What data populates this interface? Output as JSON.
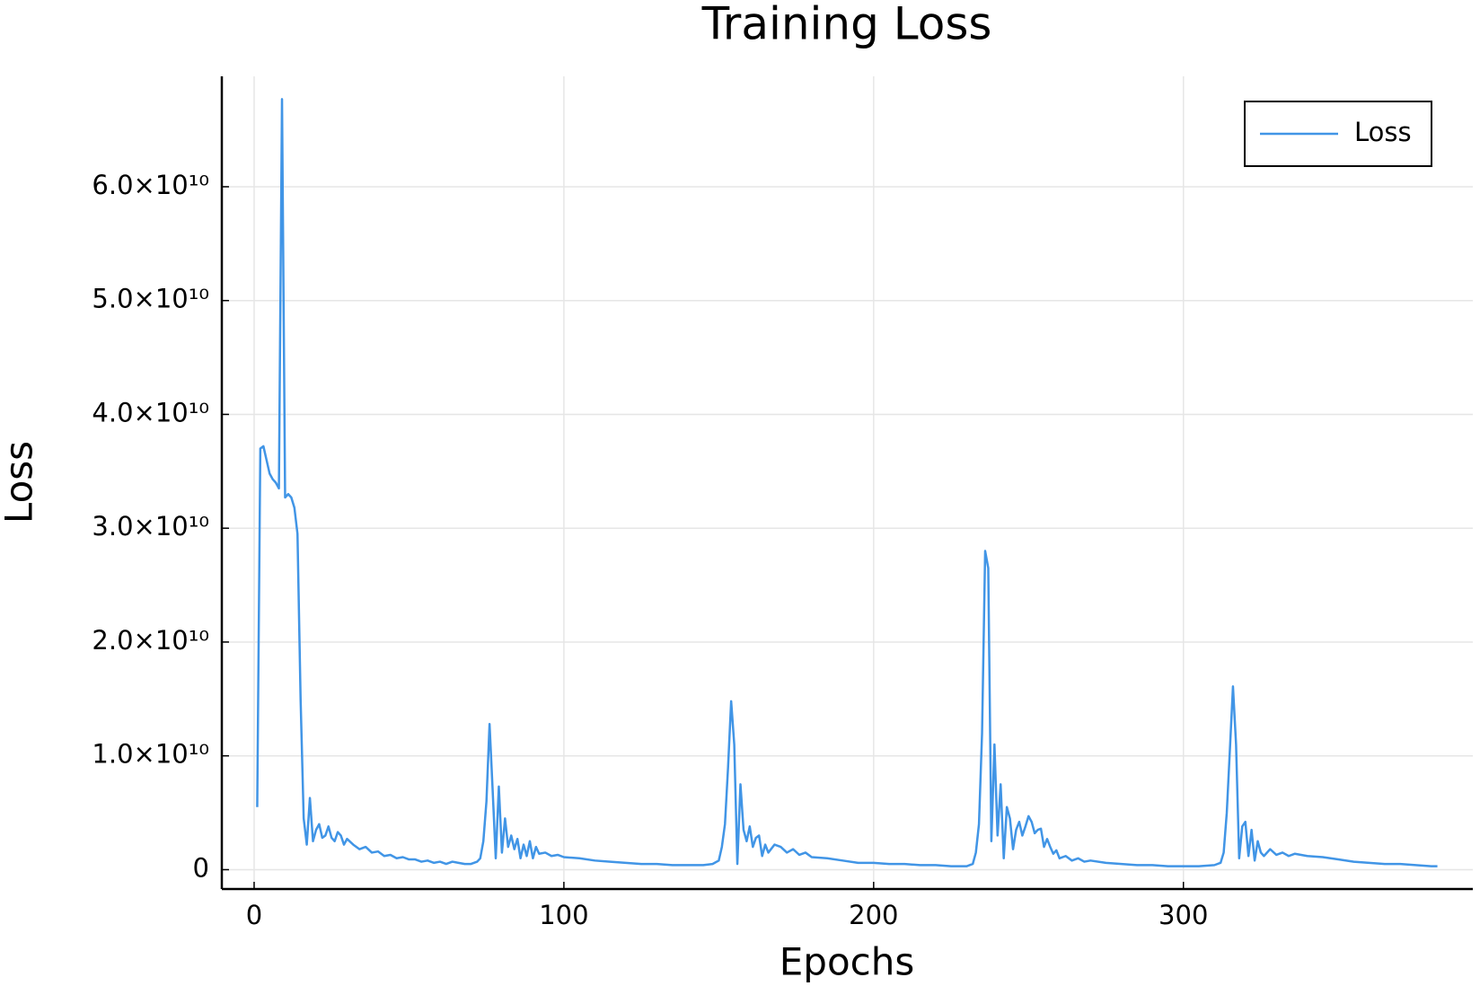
{
  "chart_data": {
    "type": "line",
    "title": "Training Loss",
    "x_label": "Epochs",
    "y_label": "Loss",
    "xlim": [
      -10.43,
      393.43
    ],
    "xticks": [
      0,
      100,
      200,
      300
    ],
    "ylim": [
      -1700000000.0,
      69700000000.0
    ],
    "yticks": [
      0,
      {
        "value": 10000000000.0,
        "label": "1.0×10¹⁰"
      },
      {
        "value": 20000000000.0,
        "label": "2.0×10¹⁰"
      },
      {
        "value": 30000000000.0,
        "label": "3.0×10¹⁰"
      },
      {
        "value": 40000000000.0,
        "label": "4.0×10¹⁰"
      },
      {
        "value": 50000000000.0,
        "label": "5.0×10¹⁰"
      },
      {
        "value": 60000000000.0,
        "label": "6.0×10¹⁰"
      }
    ],
    "grid": true,
    "legend_position": "top-right",
    "series": [
      {
        "name": "Loss",
        "color": "#4195e6",
        "x": [
          1,
          2,
          3,
          4,
          5,
          6,
          7,
          8,
          9,
          10,
          11,
          12,
          13,
          14,
          15,
          16,
          17,
          18,
          19,
          20,
          21,
          22,
          23,
          24,
          25,
          26,
          27,
          28,
          29,
          30,
          32,
          34,
          36,
          38,
          40,
          42,
          44,
          46,
          48,
          50,
          52,
          54,
          56,
          58,
          60,
          62,
          64,
          66,
          68,
          70,
          72,
          73,
          74,
          75,
          76,
          77,
          78,
          79,
          80,
          81,
          82,
          83,
          84,
          85,
          86,
          87,
          88,
          89,
          90,
          91,
          92,
          94,
          96,
          98,
          100,
          105,
          110,
          115,
          120,
          125,
          130,
          135,
          140,
          145,
          148,
          150,
          151,
          152,
          153,
          154,
          155,
          156,
          157,
          158,
          159,
          160,
          161,
          162,
          163,
          164,
          165,
          166,
          168,
          170,
          172,
          174,
          176,
          178,
          180,
          185,
          190,
          195,
          200,
          205,
          210,
          215,
          220,
          225,
          230,
          232,
          233,
          234,
          235,
          236,
          237,
          238,
          239,
          240,
          241,
          242,
          243,
          244,
          245,
          246,
          247,
          248,
          249,
          250,
          251,
          252,
          253,
          254,
          255,
          256,
          257,
          258,
          259,
          260,
          262,
          264,
          266,
          268,
          270,
          275,
          280,
          285,
          290,
          295,
          300,
          305,
          310,
          312,
          313,
          314,
          315,
          316,
          317,
          318,
          319,
          320,
          321,
          322,
          323,
          324,
          325,
          326,
          328,
          330,
          332,
          334,
          336,
          340,
          345,
          350,
          355,
          360,
          365,
          370,
          375,
          380,
          382
        ],
        "values": [
          5500000000.0,
          37000000000.0,
          37200000000.0,
          36000000000.0,
          34800000000.0,
          34300000000.0,
          34000000000.0,
          33500000000.0,
          67700000000.0,
          32700000000.0,
          33000000000.0,
          32700000000.0,
          31800000000.0,
          29500000000.0,
          15000000000.0,
          4500000000.0,
          2200000000.0,
          6300000000.0,
          2500000000.0,
          3500000000.0,
          4000000000.0,
          2800000000.0,
          3000000000.0,
          3800000000.0,
          2800000000.0,
          2500000000.0,
          3300000000.0,
          3000000000.0,
          2200000000.0,
          2700000000.0,
          2200000000.0,
          1800000000.0,
          2000000000.0,
          1500000000.0,
          1600000000.0,
          1200000000.0,
          1300000000.0,
          1000000000.0,
          1100000000.0,
          900000000.0,
          900000000.0,
          700000000.0,
          800000000.0,
          600000000.0,
          700000000.0,
          500000000.0,
          700000000.0,
          600000000.0,
          500000000.0,
          500000000.0,
          700000000.0,
          1000000000.0,
          2500000000.0,
          6000000000.0,
          12800000000.0,
          7000000000.0,
          1000000000.0,
          7300000000.0,
          1500000000.0,
          4500000000.0,
          2000000000.0,
          3000000000.0,
          1800000000.0,
          2700000000.0,
          1000000000.0,
          2200000000.0,
          1200000000.0,
          2500000000.0,
          1000000000.0,
          2000000000.0,
          1400000000.0,
          1500000000.0,
          1200000000.0,
          1300000000.0,
          1100000000.0,
          1000000000.0,
          800000000.0,
          700000000.0,
          600000000.0,
          500000000.0,
          500000000.0,
          400000000.0,
          400000000.0,
          400000000.0,
          500000000.0,
          800000000.0,
          2000000000.0,
          4000000000.0,
          9000000000.0,
          14800000000.0,
          11000000000.0,
          500000000.0,
          7500000000.0,
          3500000000.0,
          2500000000.0,
          3800000000.0,
          2000000000.0,
          2800000000.0,
          3000000000.0,
          1200000000.0,
          2200000000.0,
          1500000000.0,
          2200000000.0,
          2000000000.0,
          1500000000.0,
          1800000000.0,
          1300000000.0,
          1500000000.0,
          1100000000.0,
          1000000000.0,
          800000000.0,
          600000000.0,
          600000000.0,
          500000000.0,
          500000000.0,
          400000000.0,
          400000000.0,
          300000000.0,
          300000000.0,
          500000000.0,
          1500000000.0,
          4000000000.0,
          12000000000.0,
          28000000000.0,
          26500000000.0,
          2500000000.0,
          11000000000.0,
          3000000000.0,
          7500000000.0,
          1000000000.0,
          5500000000.0,
          4500000000.0,
          1800000000.0,
          3500000000.0,
          4200000000.0,
          3000000000.0,
          3800000000.0,
          4700000000.0,
          4200000000.0,
          3200000000.0,
          3500000000.0,
          3600000000.0,
          2000000000.0,
          2700000000.0,
          2000000000.0,
          1400000000.0,
          1700000000.0,
          1000000000.0,
          1200000000.0,
          800000000.0,
          1000000000.0,
          700000000.0,
          800000000.0,
          600000000.0,
          500000000.0,
          400000000.0,
          400000000.0,
          300000000.0,
          300000000.0,
          300000000.0,
          400000000.0,
          600000000.0,
          1500000000.0,
          5000000000.0,
          10500000000.0,
          16100000000.0,
          11000000000.0,
          1000000000.0,
          3800000000.0,
          4200000000.0,
          1200000000.0,
          3500000000.0,
          800000000.0,
          2500000000.0,
          1500000000.0,
          1200000000.0,
          1800000000.0,
          1300000000.0,
          1500000000.0,
          1200000000.0,
          1400000000.0,
          1200000000.0,
          1100000000.0,
          900000000.0,
          700000000.0,
          600000000.0,
          500000000.0,
          500000000.0,
          400000000.0,
          300000000.0,
          300000000.0
        ]
      }
    ]
  }
}
